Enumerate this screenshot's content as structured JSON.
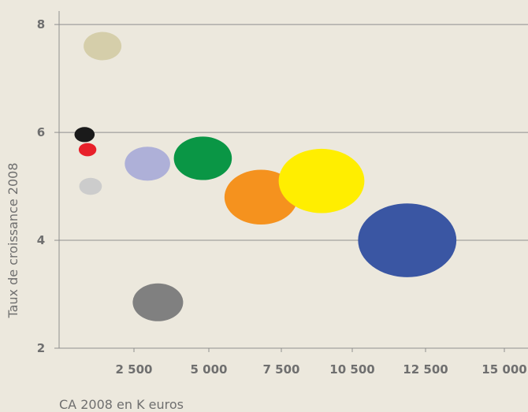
{
  "chart_data": {
    "type": "scatter",
    "variant": "bubble",
    "title": "",
    "xlabel": "CA 2008 en K euros",
    "ylabel": "Taux de croissance 2008",
    "x_ticks": [
      {
        "value": 2500,
        "label": "2 500"
      },
      {
        "value": 5000,
        "label": "5 000"
      },
      {
        "value": 7500,
        "label": "7 500"
      },
      {
        "value": 10500,
        "label": "10 500"
      },
      {
        "value": 12500,
        "label": "12 500"
      },
      {
        "value": 15000,
        "label": "15 000"
      }
    ],
    "y_ticks": [
      {
        "value": 2,
        "label": "2"
      },
      {
        "value": 4,
        "label": "4"
      },
      {
        "value": 6,
        "label": "6"
      },
      {
        "value": 8,
        "label": "8"
      }
    ],
    "ylim": [
      2,
      8.25
    ],
    "grid": "horizontal",
    "points": [
      {
        "x": 3300,
        "y": 2.85,
        "size": 1.0,
        "color": "#808080"
      },
      {
        "x": 1050,
        "y": 5.0,
        "size": 0.45,
        "color": "#cccccc"
      },
      {
        "x": 2950,
        "y": 5.42,
        "size": 0.9,
        "color": "#aeb0d8"
      },
      {
        "x": 1450,
        "y": 7.6,
        "size": 0.75,
        "color": "#d5ceaa"
      },
      {
        "x": 950,
        "y": 5.68,
        "size": 0.35,
        "color": "#e8202a"
      },
      {
        "x": 850,
        "y": 5.96,
        "size": 0.4,
        "color": "#1a1a1a"
      },
      {
        "x": 4800,
        "y": 5.52,
        "size": 1.15,
        "color": "#0a9645"
      },
      {
        "x": 6800,
        "y": 4.8,
        "size": 1.45,
        "color": "#f5921e"
      },
      {
        "x": 9200,
        "y": 5.1,
        "size": 1.7,
        "color": "#ffee00"
      },
      {
        "x": 12000,
        "y": 4.0,
        "size": 1.95,
        "color": "#3a56a3"
      }
    ]
  }
}
